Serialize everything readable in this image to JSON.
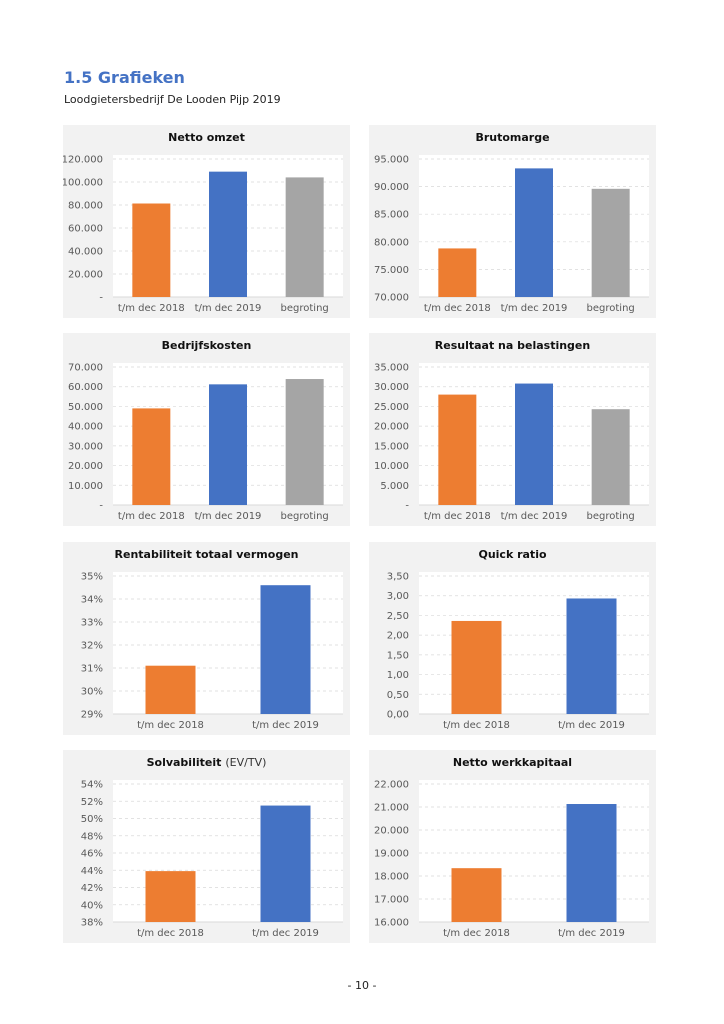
{
  "header": {
    "title": "1.5 Grafieken",
    "subtitle": "Loodgietersbedrijf De Looden Pijp 2019"
  },
  "footer": {
    "page_number": "- 10 -"
  },
  "colors": {
    "t/m dec 2018": "#ED7D31",
    "t/m dec 2019": "#4472C4",
    "begroting": "#A5A5A5",
    "panel_bg": "#f2f2f2"
  },
  "chart_data": [
    {
      "type": "bar",
      "title": "Netto omzet",
      "title_suffix": "",
      "categories": [
        "t/m dec 2018",
        "t/m dec 2019",
        "begroting"
      ],
      "values": [
        81300,
        109000,
        104000
      ],
      "ylim": [
        0,
        120000
      ],
      "yticks": [
        0,
        20000,
        40000,
        60000,
        80000,
        100000,
        120000
      ],
      "ytick_labels": [
        "-",
        "20.000",
        "40.000",
        "60.000",
        "80.000",
        "100.000",
        "120.000"
      ],
      "grid": true
    },
    {
      "type": "bar",
      "title": "Brutomarge",
      "title_suffix": "",
      "categories": [
        "t/m dec 2018",
        "t/m dec 2019",
        "begroting"
      ],
      "values": [
        78800,
        93300,
        89600
      ],
      "ylim": [
        70000,
        95000
      ],
      "yticks": [
        70000,
        75000,
        80000,
        85000,
        90000,
        95000
      ],
      "ytick_labels": [
        "70.000",
        "75.000",
        "80.000",
        "85.000",
        "90.000",
        "95.000"
      ],
      "grid": true
    },
    {
      "type": "bar",
      "title": "Bedrijfskosten",
      "title_suffix": "",
      "categories": [
        "t/m dec 2018",
        "t/m dec 2019",
        "begroting"
      ],
      "values": [
        49000,
        61200,
        63900
      ],
      "ylim": [
        0,
        70000
      ],
      "yticks": [
        0,
        10000,
        20000,
        30000,
        40000,
        50000,
        60000,
        70000
      ],
      "ytick_labels": [
        "-",
        "10.000",
        "20.000",
        "30.000",
        "40.000",
        "50.000",
        "60.000",
        "70.000"
      ],
      "grid": true
    },
    {
      "type": "bar",
      "title": "Resultaat na belastingen",
      "title_suffix": "",
      "categories": [
        "t/m dec 2018",
        "t/m dec 2019",
        "begroting"
      ],
      "values": [
        28000,
        30800,
        24300
      ],
      "ylim": [
        0,
        35000
      ],
      "yticks": [
        0,
        5000,
        10000,
        15000,
        20000,
        25000,
        30000,
        35000
      ],
      "ytick_labels": [
        "-",
        "5.000",
        "10.000",
        "15.000",
        "20.000",
        "25.000",
        "30.000",
        "35.000"
      ],
      "grid": true
    },
    {
      "type": "bar",
      "title": "Rentabiliteit totaal vermogen",
      "title_suffix": "",
      "categories": [
        "t/m dec 2018",
        "t/m dec 2019"
      ],
      "values": [
        31.1,
        34.6
      ],
      "ylim": [
        29,
        35
      ],
      "yticks": [
        29,
        30,
        31,
        32,
        33,
        34,
        35
      ],
      "ytick_labels": [
        "29%",
        "30%",
        "31%",
        "32%",
        "33%",
        "34%",
        "35%"
      ],
      "grid": true
    },
    {
      "type": "bar",
      "title": "Quick ratio",
      "title_suffix": "",
      "categories": [
        "t/m dec 2018",
        "t/m dec 2019"
      ],
      "values": [
        2.36,
        2.93
      ],
      "ylim": [
        0,
        3.5
      ],
      "yticks": [
        0,
        0.5,
        1,
        1.5,
        2,
        2.5,
        3,
        3.5
      ],
      "ytick_labels": [
        "0,00",
        "0,50",
        "1,00",
        "1,50",
        "2,00",
        "2,50",
        "3,00",
        "3,50"
      ],
      "grid": true
    },
    {
      "type": "bar",
      "title": "Solvabiliteit",
      "title_suffix": "(EV/TV)",
      "categories": [
        "t/m dec 2018",
        "t/m dec 2019"
      ],
      "values": [
        43.9,
        51.5
      ],
      "ylim": [
        38,
        54
      ],
      "yticks": [
        38,
        40,
        42,
        44,
        46,
        48,
        50,
        52,
        54
      ],
      "ytick_labels": [
        "38%",
        "40%",
        "42%",
        "44%",
        "46%",
        "48%",
        "50%",
        "52%",
        "54%"
      ],
      "grid": true
    },
    {
      "type": "bar",
      "title": "Netto werkkapitaal",
      "title_suffix": "",
      "categories": [
        "t/m dec 2018",
        "t/m dec 2019"
      ],
      "values": [
        18340,
        21130
      ],
      "ylim": [
        16000,
        22000
      ],
      "yticks": [
        16000,
        17000,
        18000,
        19000,
        20000,
        21000,
        22000
      ],
      "ytick_labels": [
        "16.000",
        "17.000",
        "18.000",
        "19.000",
        "20.000",
        "21.000",
        "22.000"
      ],
      "grid": true
    }
  ]
}
